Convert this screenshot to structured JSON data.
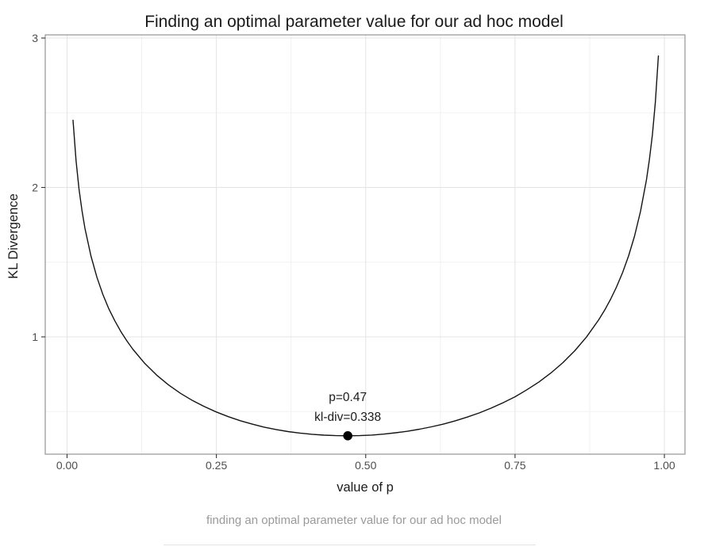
{
  "figure": {
    "caption": "finding an optimal parameter value for our ad hoc model"
  },
  "colors": {
    "curve": "#141414",
    "point": "#000000",
    "panel_border": "#949494",
    "tick_mark": "#333333",
    "grid_major": "#e4e4e4",
    "grid_minor": "#f2f2f2",
    "title_text": "#1a1a1a",
    "tick_text": "#4d4d4d",
    "caption_text": "#9a9a9a",
    "divider": "#e4e4e4"
  },
  "chart_data": {
    "type": "line",
    "title": "Finding an optimal parameter value for our ad hoc model",
    "xlabel": "value of p",
    "ylabel": "KL Divergence",
    "xlim": [
      -0.0365,
      1.0345
    ],
    "ylim": [
      0.2149,
      3.0212
    ],
    "grid": true,
    "legend": "none",
    "x_ticks": [
      0,
      0.25,
      0.5,
      0.75,
      1.0
    ],
    "x_tick_labels": [
      "0.00",
      "0.25",
      "0.50",
      "0.75",
      "1.00"
    ],
    "x_minor_breaks": [
      0.125,
      0.375,
      0.625,
      0.875
    ],
    "y_ticks": [
      1,
      2,
      3
    ],
    "y_tick_labels": [
      "1",
      "2",
      "3"
    ],
    "y_minor_breaks": [
      0.5,
      1.5,
      2.5
    ],
    "series": [
      {
        "name": "kl-divergence-curve",
        "x": [
          0.01,
          0.015,
          0.02,
          0.025,
          0.03,
          0.04,
          0.05,
          0.06,
          0.07,
          0.08,
          0.09,
          0.1,
          0.11,
          0.13,
          0.15,
          0.17,
          0.19,
          0.21,
          0.23,
          0.25,
          0.27,
          0.29,
          0.31,
          0.33,
          0.35,
          0.37,
          0.39,
          0.41,
          0.43,
          0.45,
          0.47,
          0.49,
          0.51,
          0.53,
          0.55,
          0.57,
          0.59,
          0.61,
          0.63,
          0.65,
          0.67,
          0.69,
          0.71,
          0.73,
          0.75,
          0.77,
          0.79,
          0.81,
          0.83,
          0.85,
          0.87,
          0.89,
          0.9,
          0.91,
          0.92,
          0.93,
          0.94,
          0.95,
          0.96,
          0.97,
          0.975,
          0.98,
          0.985,
          0.99
        ],
        "y": [
          2.45,
          2.181,
          1.991,
          1.845,
          1.727,
          1.541,
          1.399,
          1.284,
          1.188,
          1.107,
          1.036,
          0.974,
          0.918,
          0.823,
          0.744,
          0.678,
          0.622,
          0.574,
          0.533,
          0.497,
          0.466,
          0.439,
          0.416,
          0.396,
          0.38,
          0.366,
          0.356,
          0.348,
          0.342,
          0.339,
          0.338,
          0.339,
          0.343,
          0.349,
          0.358,
          0.368,
          0.382,
          0.398,
          0.416,
          0.438,
          0.463,
          0.491,
          0.523,
          0.559,
          0.599,
          0.646,
          0.698,
          0.758,
          0.827,
          0.907,
          1.001,
          1.114,
          1.179,
          1.252,
          1.335,
          1.43,
          1.541,
          1.674,
          1.838,
          2.052,
          2.188,
          2.355,
          2.573,
          2.88
        ]
      }
    ],
    "highlight_point": {
      "x": 0.47,
      "y": 0.338,
      "label_line1": "p=0.47",
      "label_line2": "kl-div=0.338"
    }
  }
}
